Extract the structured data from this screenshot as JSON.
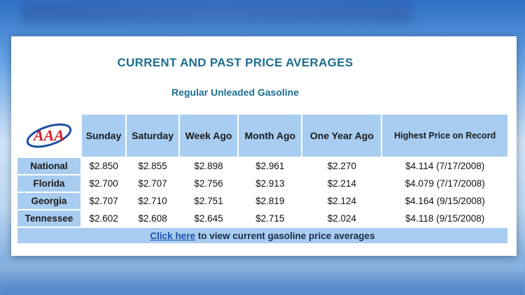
{
  "header": {
    "title": "CURRENT AND PAST PRICE AVERAGES",
    "subtitle": "Regular Unleaded Gasoline"
  },
  "logo": {
    "text": "AAA",
    "icon": "aaa-logo-icon",
    "text_color": "#d21f26",
    "swoosh_color": "#1f4fa3"
  },
  "table": {
    "columns": [
      "Sunday",
      "Saturday",
      "Week Ago",
      "Month Ago",
      "One Year Ago",
      "Highest Price on Record"
    ],
    "rows": [
      {
        "state": "National",
        "values": [
          "$2.850",
          "$2.855",
          "$2.898",
          "$2.961",
          "$2.270",
          "$4.114 (7/17/2008)"
        ]
      },
      {
        "state": "Florida",
        "values": [
          "$2.700",
          "$2.707",
          "$2.756",
          "$2.913",
          "$2.214",
          "$4.079 (7/17/2008)"
        ]
      },
      {
        "state": "Georgia",
        "values": [
          "$2.707",
          "$2.710",
          "$2.751",
          "$2.819",
          "$2.124",
          "$4.164 (9/15/2008)"
        ]
      },
      {
        "state": "Tennessee",
        "values": [
          "$2.602",
          "$2.608",
          "$2.645",
          "$2.715",
          "$2.024",
          "$4.118 (9/15/2008)"
        ]
      }
    ]
  },
  "footer": {
    "link_text": "Click here",
    "rest_text": " to view current gasoline price averages"
  },
  "colors": {
    "header_bg": "#a9cdf1",
    "title": "#1d6e8f",
    "link": "#1a4fb3"
  }
}
